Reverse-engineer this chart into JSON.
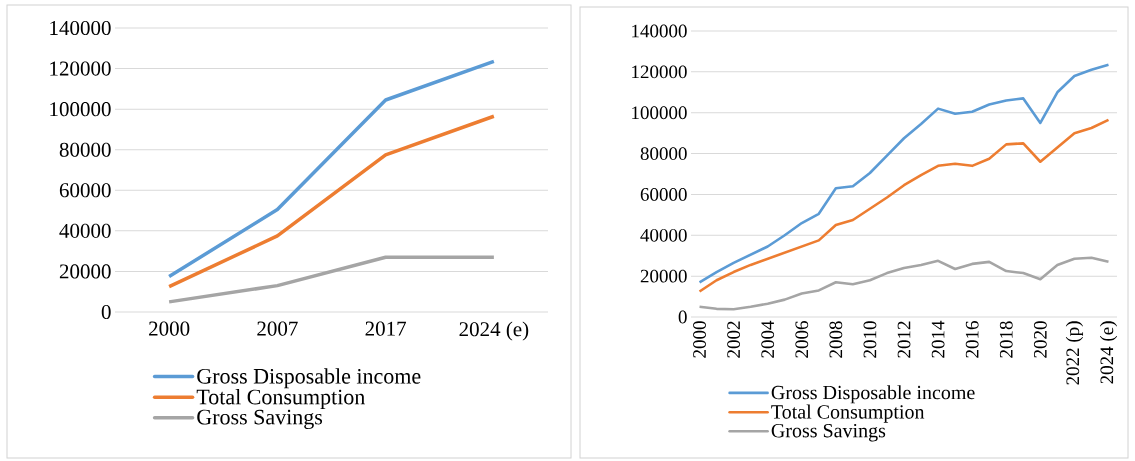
{
  "chart_data": [
    {
      "type": "line",
      "categories": [
        "2000",
        "2007",
        "2017",
        "2024 (e)"
      ],
      "ylim": [
        0,
        140000
      ],
      "yticks": [
        0,
        20000,
        40000,
        60000,
        80000,
        100000,
        120000,
        140000
      ],
      "grid": "y",
      "legend": "bottom",
      "series": [
        {
          "name": "Gross Disposable income",
          "color": "#5b9bd5",
          "values": [
            17500,
            50500,
            104500,
            123500
          ]
        },
        {
          "name": "Total Consumption",
          "color": "#ed7d31",
          "values": [
            12500,
            37500,
            77500,
            96500
          ]
        },
        {
          "name": "Gross Savings",
          "color": "#a5a5a5",
          "values": [
            5000,
            13000,
            27000,
            27000
          ]
        }
      ]
    },
    {
      "type": "line",
      "categories": [
        "2000",
        null,
        "2002",
        null,
        "2004",
        null,
        "2006",
        null,
        "2008",
        null,
        "2010",
        null,
        "2012",
        null,
        "2014",
        null,
        "2016",
        null,
        "2018",
        null,
        "2020",
        null,
        "2022 (p)",
        null,
        "2024 (e)"
      ],
      "ylim": [
        0,
        140000
      ],
      "yticks": [
        0,
        20000,
        40000,
        60000,
        80000,
        100000,
        120000,
        140000
      ],
      "grid": "y",
      "legend": "bottom",
      "series": [
        {
          "name": "Gross Disposable income",
          "color": "#5b9bd5",
          "values": [
            17000,
            22000,
            26500,
            30500,
            34500,
            40000,
            46000,
            50500,
            63000,
            64000,
            70500,
            79000,
            87500,
            94500,
            102000,
            99500,
            100500,
            104000,
            106000,
            107000,
            95000,
            110000,
            118000,
            121000,
            123500
          ]
        },
        {
          "name": "Total Consumption",
          "color": "#ed7d31",
          "values": [
            12500,
            18000,
            22000,
            25500,
            28500,
            31500,
            34500,
            37500,
            45000,
            47500,
            53000,
            58500,
            64500,
            69500,
            74000,
            75000,
            74000,
            77500,
            84500,
            85000,
            76000,
            83000,
            90000,
            92500,
            96500
          ]
        },
        {
          "name": "Gross Savings",
          "color": "#a5a5a5",
          "values": [
            5000,
            4000,
            3800,
            5000,
            6500,
            8500,
            11500,
            13000,
            17000,
            16000,
            18000,
            21500,
            24000,
            25500,
            27500,
            23500,
            26000,
            27000,
            22500,
            21500,
            18500,
            25500,
            28500,
            29000,
            27000
          ]
        }
      ]
    }
  ]
}
